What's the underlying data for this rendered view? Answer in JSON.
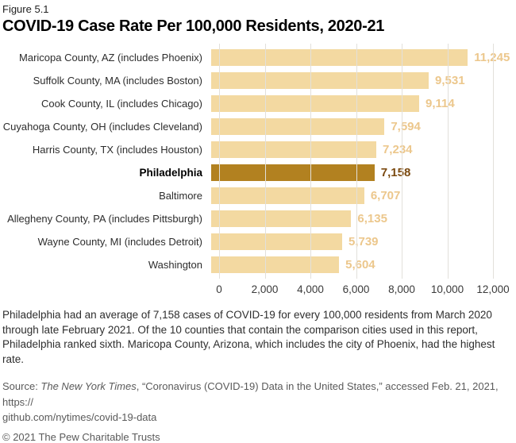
{
  "figure_label": "Figure 5.1",
  "title": "COVID-19 Case Rate Per 100,000 Residents, 2020-21",
  "chart_data": {
    "type": "bar",
    "orientation": "horizontal",
    "title": "COVID-19 Case Rate Per 100,000 Residents, 2020-21",
    "categories": [
      "Maricopa County, AZ (includes Phoenix)",
      "Suffolk County, MA (includes Boston)",
      "Cook County, IL (includes Chicago)",
      "Cuyahoga County, OH (includes Cleveland)",
      "Harris County, TX (includes Houston)",
      "Philadelphia",
      "Baltimore",
      "Allegheny County, PA (includes Pittsburgh)",
      "Wayne County, MI (includes Detroit)",
      "Washington"
    ],
    "values": [
      11245,
      9531,
      9114,
      7594,
      7234,
      7158,
      6707,
      6135,
      5739,
      5604
    ],
    "value_labels": [
      "11,245",
      "9,531",
      "9,114",
      "7,594",
      "7,234",
      "7,158",
      "6,707",
      "6,135",
      "5,739",
      "5,604"
    ],
    "highlight_index": 5,
    "highlight_category": "Philadelphia",
    "xlim": [
      0,
      12000
    ],
    "x_ticks": [
      "0",
      "2,000",
      "4,000",
      "6,000",
      "8,000",
      "10,000",
      "12,000"
    ],
    "x_tick_values": [
      0,
      2000,
      4000,
      6000,
      8000,
      10000,
      12000
    ],
    "grid": "vertical",
    "legend": "none",
    "colors": {
      "bar": "#F3D9A1",
      "bar_highlight": "#B28120",
      "value_label": "#ECC78C",
      "value_label_highlight": "#7B4A10",
      "gridline": "#E2E0DB"
    }
  },
  "caption": "Philadelphia had an average of 7,158 cases of COVID-19 for every 100,000 residents from March 2020 through late February 2021. Of the 10 counties that contain the comparison cities used in this report, Philadelphia ranked sixth. Maricopa County, Arizona, which includes the city of Phoenix, had the highest rate.",
  "source": {
    "prefix": "Source: ",
    "publication": "The New York Times",
    "suffix": ", “Coronavirus (COVID-19) Data in the United States,” accessed Feb. 21, 2021, https://",
    "line2": "github.com/nytimes/covid-19-data"
  },
  "copyright": "© 2021 The Pew Charitable Trusts"
}
